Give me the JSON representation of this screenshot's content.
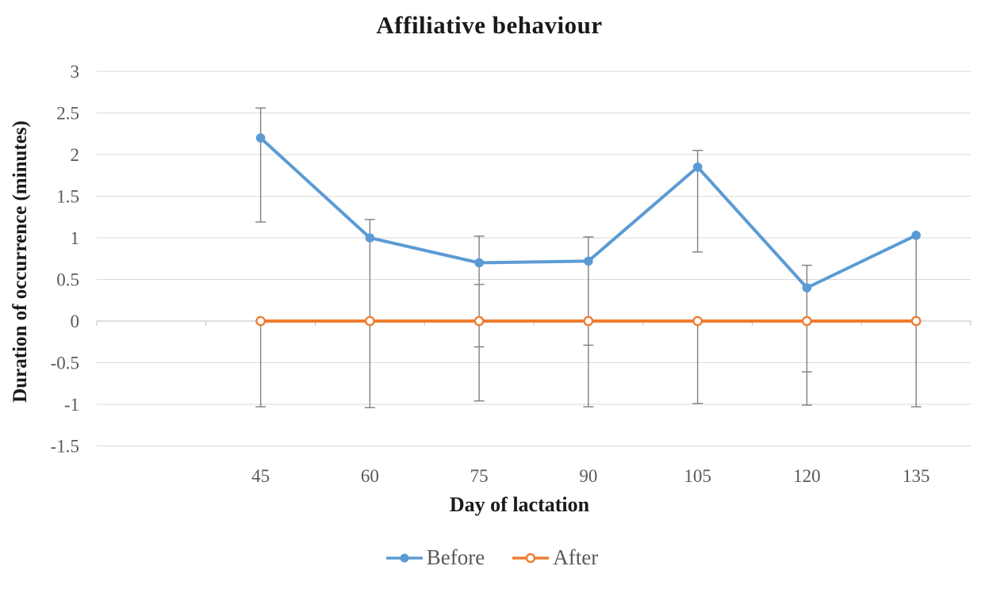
{
  "chart_data": {
    "type": "line",
    "title": "Affiliative behaviour",
    "xlabel": "Day of lactation",
    "ylabel": "Duration of occurrence (minutes)",
    "categories": [
      "45",
      "60",
      "75",
      "90",
      "105",
      "120",
      "135"
    ],
    "series": [
      {
        "name": "Before",
        "color": "#5B9BD5",
        "marker": "filled-circle",
        "values": [
          2.2,
          1.0,
          0.7,
          0.72,
          1.85,
          0.4,
          1.03
        ]
      },
      {
        "name": "After",
        "color": "#ED7D31",
        "marker": "open-circle",
        "values": [
          0,
          0,
          0,
          0,
          0,
          0,
          0
        ]
      }
    ],
    "error_bars": [
      {
        "category": "45",
        "segments": [
          {
            "lo": 1.19,
            "hi": 2.56,
            "cap_lo": true,
            "cap_hi": true,
            "mid_caps": []
          },
          {
            "lo": -1.03,
            "hi": 0.0,
            "cap_lo": true,
            "cap_hi": false,
            "mid_caps": []
          }
        ]
      },
      {
        "category": "60",
        "segments": [
          {
            "lo": -1.04,
            "hi": 1.22,
            "cap_lo": true,
            "cap_hi": true,
            "mid_caps": []
          }
        ]
      },
      {
        "category": "75",
        "segments": [
          {
            "lo": -0.96,
            "hi": 1.02,
            "cap_lo": true,
            "cap_hi": true,
            "mid_caps": [
              0.44,
              -0.31
            ]
          }
        ]
      },
      {
        "category": "90",
        "segments": [
          {
            "lo": -1.03,
            "hi": 1.01,
            "cap_lo": true,
            "cap_hi": true,
            "mid_caps": [
              -0.29
            ]
          }
        ]
      },
      {
        "category": "105",
        "segments": [
          {
            "lo": 0.83,
            "hi": 2.05,
            "cap_lo": true,
            "cap_hi": true,
            "mid_caps": []
          },
          {
            "lo": -0.99,
            "hi": 0.0,
            "cap_lo": true,
            "cap_hi": false,
            "mid_caps": []
          }
        ]
      },
      {
        "category": "120",
        "segments": [
          {
            "lo": -1.01,
            "hi": 0.67,
            "cap_lo": true,
            "cap_hi": true,
            "mid_caps": [
              -0.61
            ]
          }
        ]
      },
      {
        "category": "135",
        "segments": [
          {
            "lo": -1.03,
            "hi": 1.03,
            "cap_lo": true,
            "cap_hi": false,
            "mid_caps": []
          }
        ]
      }
    ],
    "y_ticks": [
      "3",
      "2.5",
      "2",
      "1.5",
      "1",
      "0.5",
      "0",
      "-0.5",
      "-1",
      "-1.5"
    ],
    "ylim": [
      -1.5,
      3
    ],
    "grid": true,
    "legend_position": "bottom",
    "x_axis_slots": 8,
    "x_first_data_slot": 1,
    "colors": {
      "gridline": "#D9D9D9",
      "axis_line": "#BFBFBF",
      "error_bar": "#7F7F7F",
      "tick_label": "#595959",
      "title_text": "#1a1a1a"
    }
  }
}
